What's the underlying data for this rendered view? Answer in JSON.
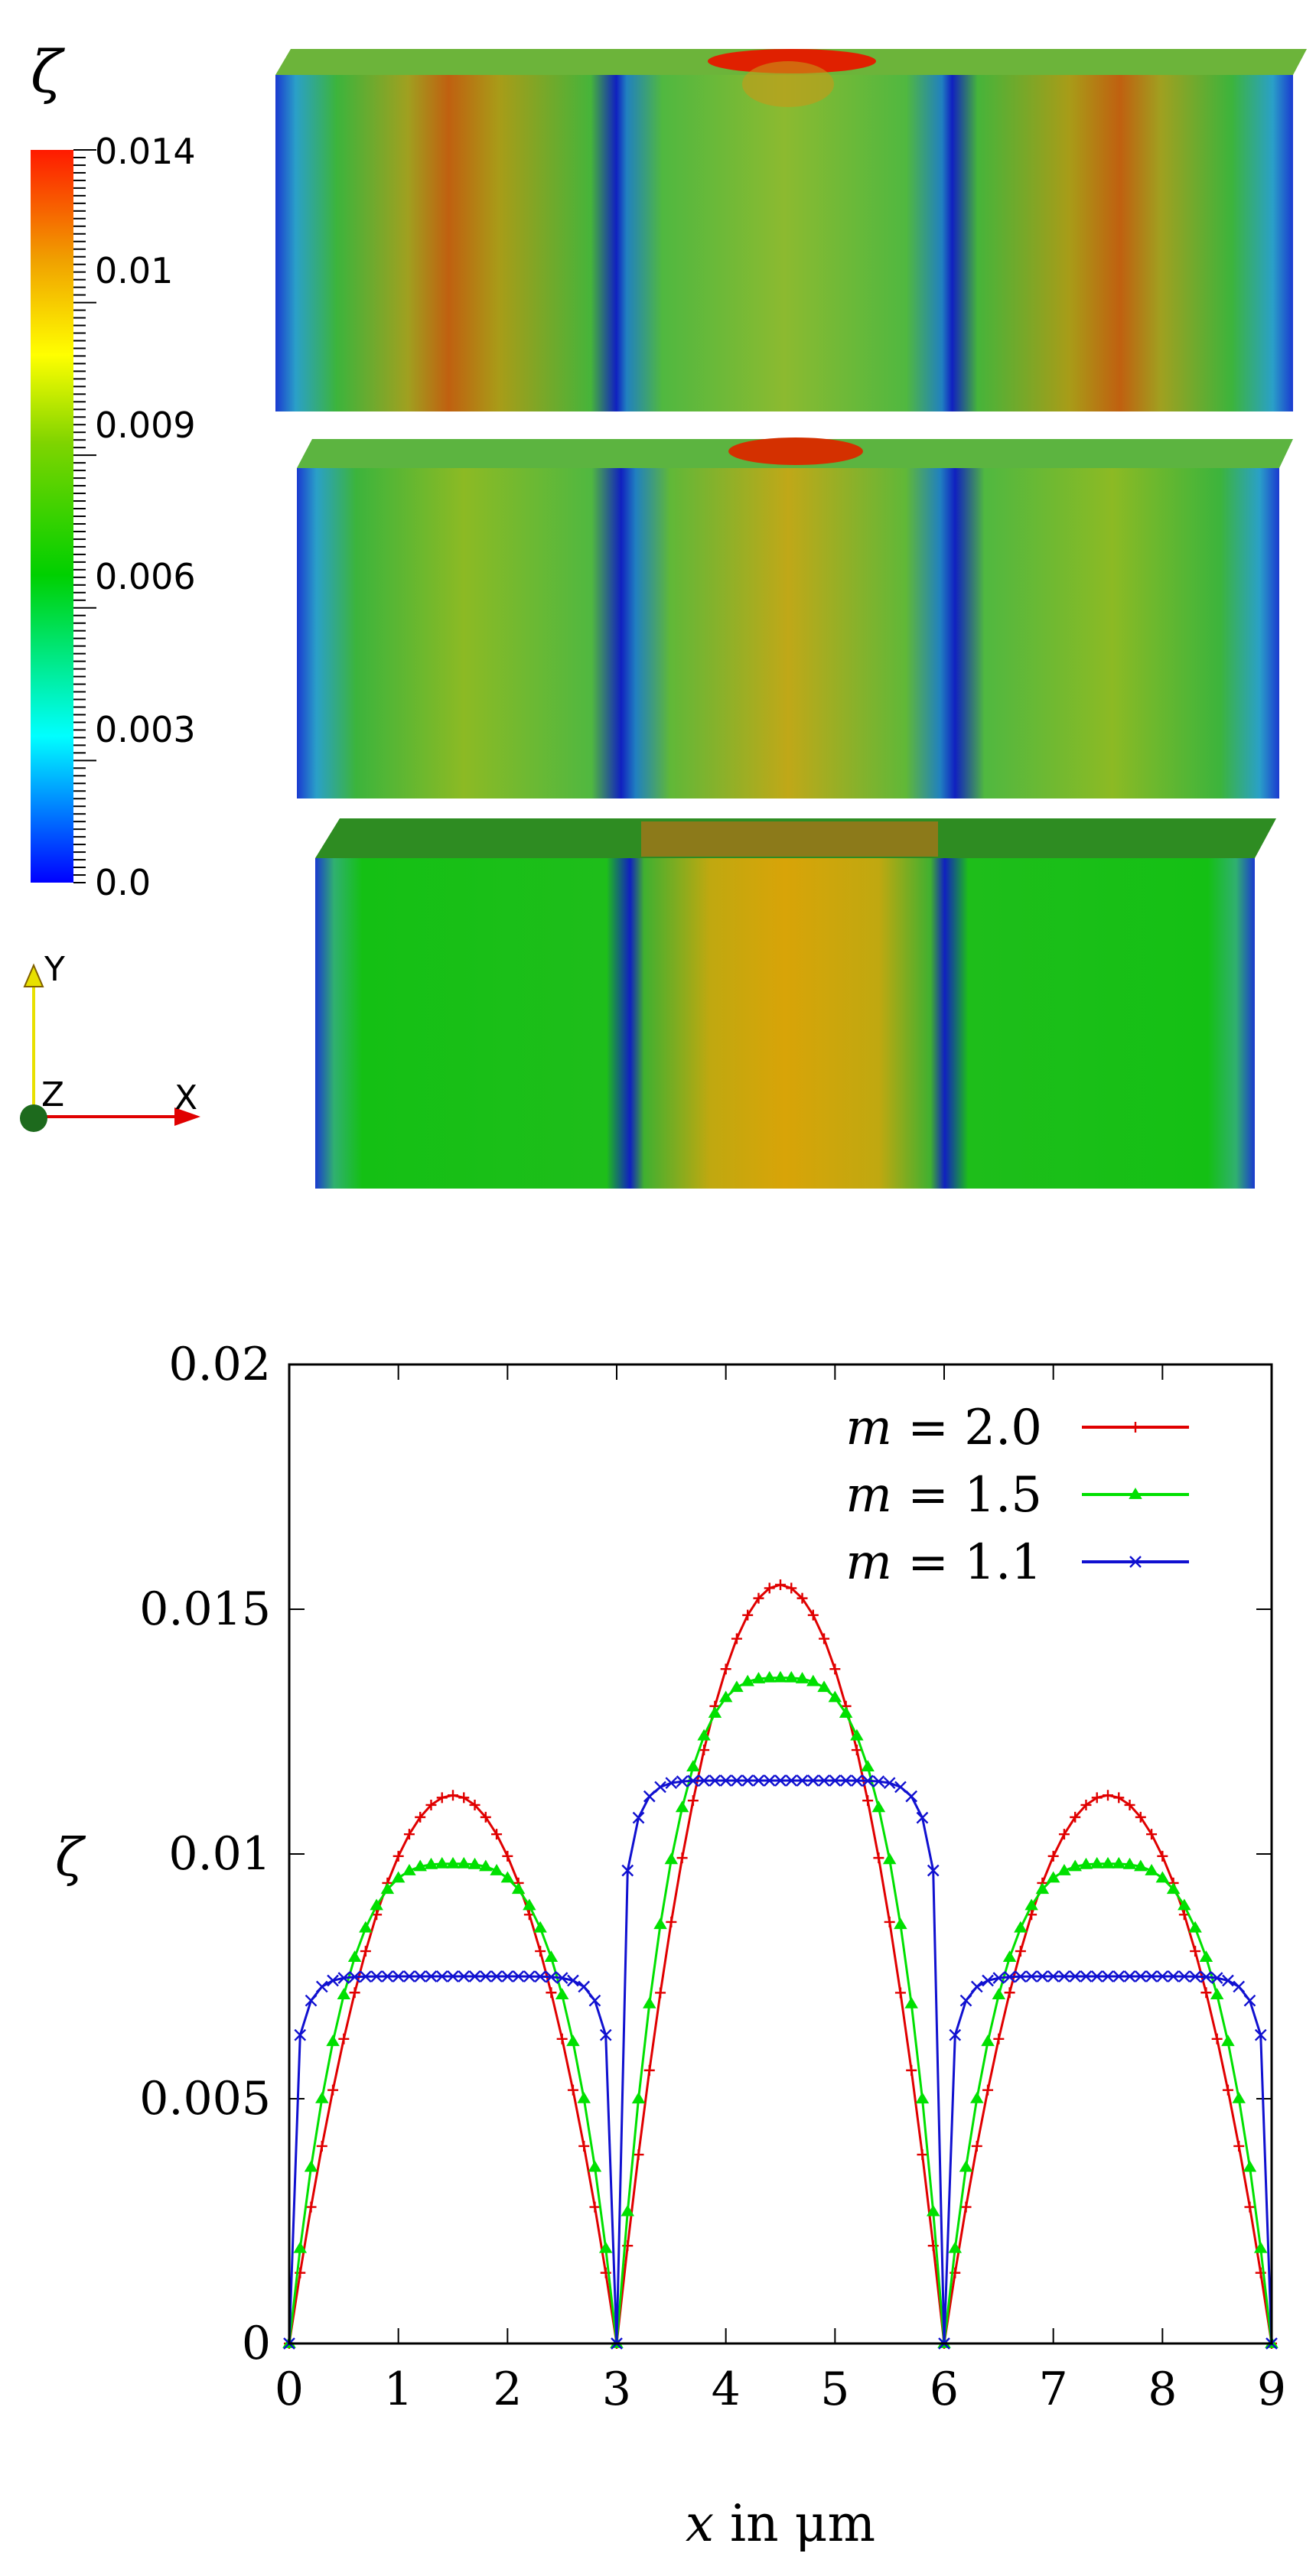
{
  "render_panel": {
    "colorbar": {
      "variable": "ζ",
      "tick_labels": [
        "0.014",
        "0.01",
        "0.009",
        "0.006",
        "0.003",
        "0.0"
      ],
      "tick_values": [
        0.014,
        0.01,
        0.009,
        0.006,
        0.003,
        0.0
      ],
      "colors": [
        "#ff1a00",
        "#f07000",
        "#ffff00",
        "#00cc00",
        "#00ffff",
        "#0000ff"
      ]
    },
    "axes_triad": {
      "y_label": "Y",
      "z_label": "Z",
      "x_label": "X"
    },
    "slab_count": 3
  },
  "chart_data": {
    "type": "line",
    "ylabel": "ζ",
    "xlabel": "x in μm",
    "xlabel_var": "x",
    "xlabel_rest": " in μm",
    "xlim": [
      0,
      9
    ],
    "ylim": [
      0,
      0.02
    ],
    "xticks": [
      0,
      1,
      2,
      3,
      4,
      5,
      6,
      7,
      8,
      9
    ],
    "xtick_labels": [
      "0",
      "1",
      "2",
      "3",
      "4",
      "5",
      "6",
      "7",
      "8",
      "9"
    ],
    "yticks": [
      0,
      0.005,
      0.01,
      0.015,
      0.02
    ],
    "ytick_labels": [
      "0",
      "0.005",
      "0.01",
      "0.015",
      "0.02"
    ],
    "grains": [
      [
        0,
        3
      ],
      [
        3,
        6
      ],
      [
        6,
        9
      ]
    ],
    "series": [
      {
        "name": "m = 2.0",
        "legend_lhs": "m",
        "legend_rhs": " = 2.0",
        "color": "#e00000",
        "marker": "plus",
        "m": 2.0,
        "peaks": [
          0.0112,
          0.0155,
          0.0112
        ]
      },
      {
        "name": "m = 1.5",
        "legend_lhs": "m",
        "legend_rhs": " = 1.5",
        "color": "#00e000",
        "marker": "triangle",
        "m": 1.5,
        "peaks": [
          0.0098,
          0.0136,
          0.0098
        ]
      },
      {
        "name": "m = 1.1",
        "legend_lhs": "m",
        "legend_rhs": " = 1.1",
        "color": "#1010d0",
        "marker": "cross",
        "m": 1.1,
        "peaks": [
          0.0075,
          0.0115,
          0.0075
        ]
      }
    ],
    "legend_position": "top-right"
  }
}
